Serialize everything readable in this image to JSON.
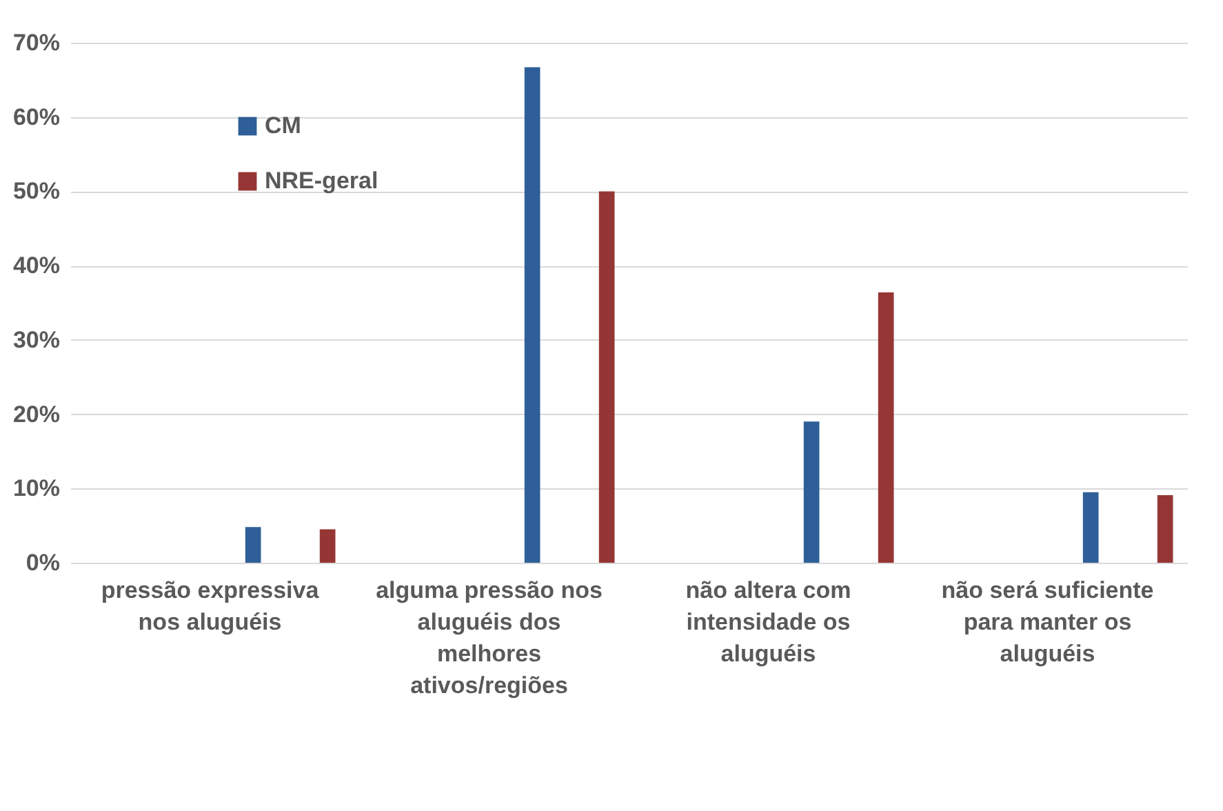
{
  "chart_data": {
    "type": "bar",
    "categories": [
      "pressão expressiva nos aluguéis",
      "alguma pressão nos aluguéis dos melhores ativos/regiões",
      "não altera com intensidade os aluguéis",
      "não será suficiente para manter os aluguéis"
    ],
    "series": [
      {
        "name": "CM",
        "color": "#2f5f98",
        "values": [
          4.8,
          66.7,
          19.0,
          9.5
        ]
      },
      {
        "name": "NRE-geral",
        "color": "#963634",
        "values": [
          4.5,
          50.0,
          36.4,
          9.1
        ]
      }
    ],
    "ylim": [
      0,
      70
    ],
    "yticks": [
      {
        "value": 0,
        "label": "0%"
      },
      {
        "value": 10,
        "label": "10%"
      },
      {
        "value": 20,
        "label": "20%"
      },
      {
        "value": 30,
        "label": "30%"
      },
      {
        "value": 40,
        "label": "40%"
      },
      {
        "value": 50,
        "label": "50%"
      },
      {
        "value": 60,
        "label": "60%"
      },
      {
        "value": 70,
        "label": "70%"
      }
    ],
    "grid": "y",
    "legend": "top left"
  }
}
